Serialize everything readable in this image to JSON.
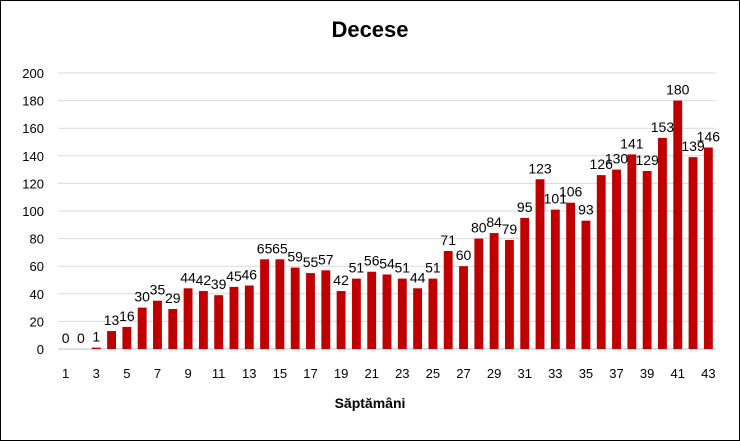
{
  "chart_data": {
    "type": "bar",
    "title": "Decese",
    "xlabel": "Săptămâni",
    "ylabel": "",
    "ylim": [
      0,
      200
    ],
    "yticks": [
      0,
      20,
      40,
      60,
      80,
      100,
      120,
      140,
      160,
      180,
      200
    ],
    "categories": [
      1,
      2,
      3,
      4,
      5,
      6,
      7,
      8,
      9,
      10,
      11,
      12,
      13,
      14,
      15,
      16,
      17,
      18,
      19,
      20,
      21,
      22,
      23,
      24,
      25,
      26,
      27,
      28,
      29,
      30,
      31,
      32,
      33,
      34,
      35,
      36,
      37,
      38,
      39,
      40,
      41,
      42,
      43
    ],
    "xtick_labels": [
      1,
      3,
      5,
      7,
      9,
      11,
      13,
      15,
      17,
      19,
      21,
      23,
      25,
      27,
      29,
      31,
      33,
      35,
      37,
      39,
      41,
      43
    ],
    "values": [
      0,
      0,
      1,
      13,
      16,
      30,
      35,
      29,
      44,
      42,
      39,
      45,
      46,
      65,
      65,
      59,
      55,
      57,
      42,
      51,
      56,
      54,
      51,
      44,
      51,
      71,
      60,
      80,
      84,
      79,
      95,
      123,
      101,
      106,
      93,
      126,
      130,
      141,
      129,
      153,
      180,
      139,
      146
    ],
    "bar_color": "#c00000",
    "grid": true,
    "grid_color": "#d9d9d9",
    "data_labels": true
  }
}
